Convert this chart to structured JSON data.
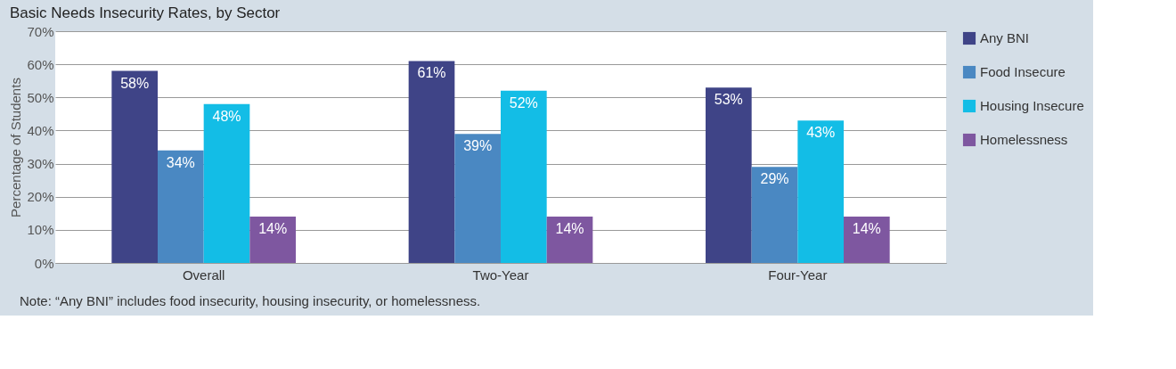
{
  "chart_data": {
    "type": "bar",
    "title": "Basic Needs Insecurity Rates, by Sector",
    "ylabel": "Percentage of Students",
    "categories": [
      "Overall",
      "Two-Year",
      "Four-Year"
    ],
    "series": [
      {
        "name": "Any BNI",
        "color": "#3f4487",
        "values": [
          58,
          61,
          53
        ],
        "value_labels": [
          "58%",
          "61%",
          "53%"
        ]
      },
      {
        "name": "Food Insecure",
        "color": "#4a88c2",
        "values": [
          34,
          39,
          29
        ],
        "value_labels": [
          "34%",
          "39%",
          "29%"
        ]
      },
      {
        "name": "Housing Insecure",
        "color": "#13bde6",
        "values": [
          48,
          52,
          43
        ],
        "value_labels": [
          "48%",
          "52%",
          "43%"
        ]
      },
      {
        "name": "Homelessness",
        "color": "#7e57a0",
        "values": [
          14,
          14,
          14
        ],
        "value_labels": [
          "14%",
          "14%",
          "14%"
        ]
      }
    ],
    "ylim": [
      0,
      70
    ],
    "yticks": [
      {
        "value": 0,
        "label": "0%"
      },
      {
        "value": 10,
        "label": "10%"
      },
      {
        "value": 20,
        "label": "20%"
      },
      {
        "value": 30,
        "label": "30%"
      },
      {
        "value": 40,
        "label": "40%"
      },
      {
        "value": 50,
        "label": "50%"
      },
      {
        "value": 60,
        "label": "60%"
      },
      {
        "value": 70,
        "label": "70%"
      }
    ],
    "grid": "y",
    "legend": "right",
    "annotations": [
      "Note: “Any BNI” includes food insecurity, housing insecurity, or homelessness."
    ]
  }
}
